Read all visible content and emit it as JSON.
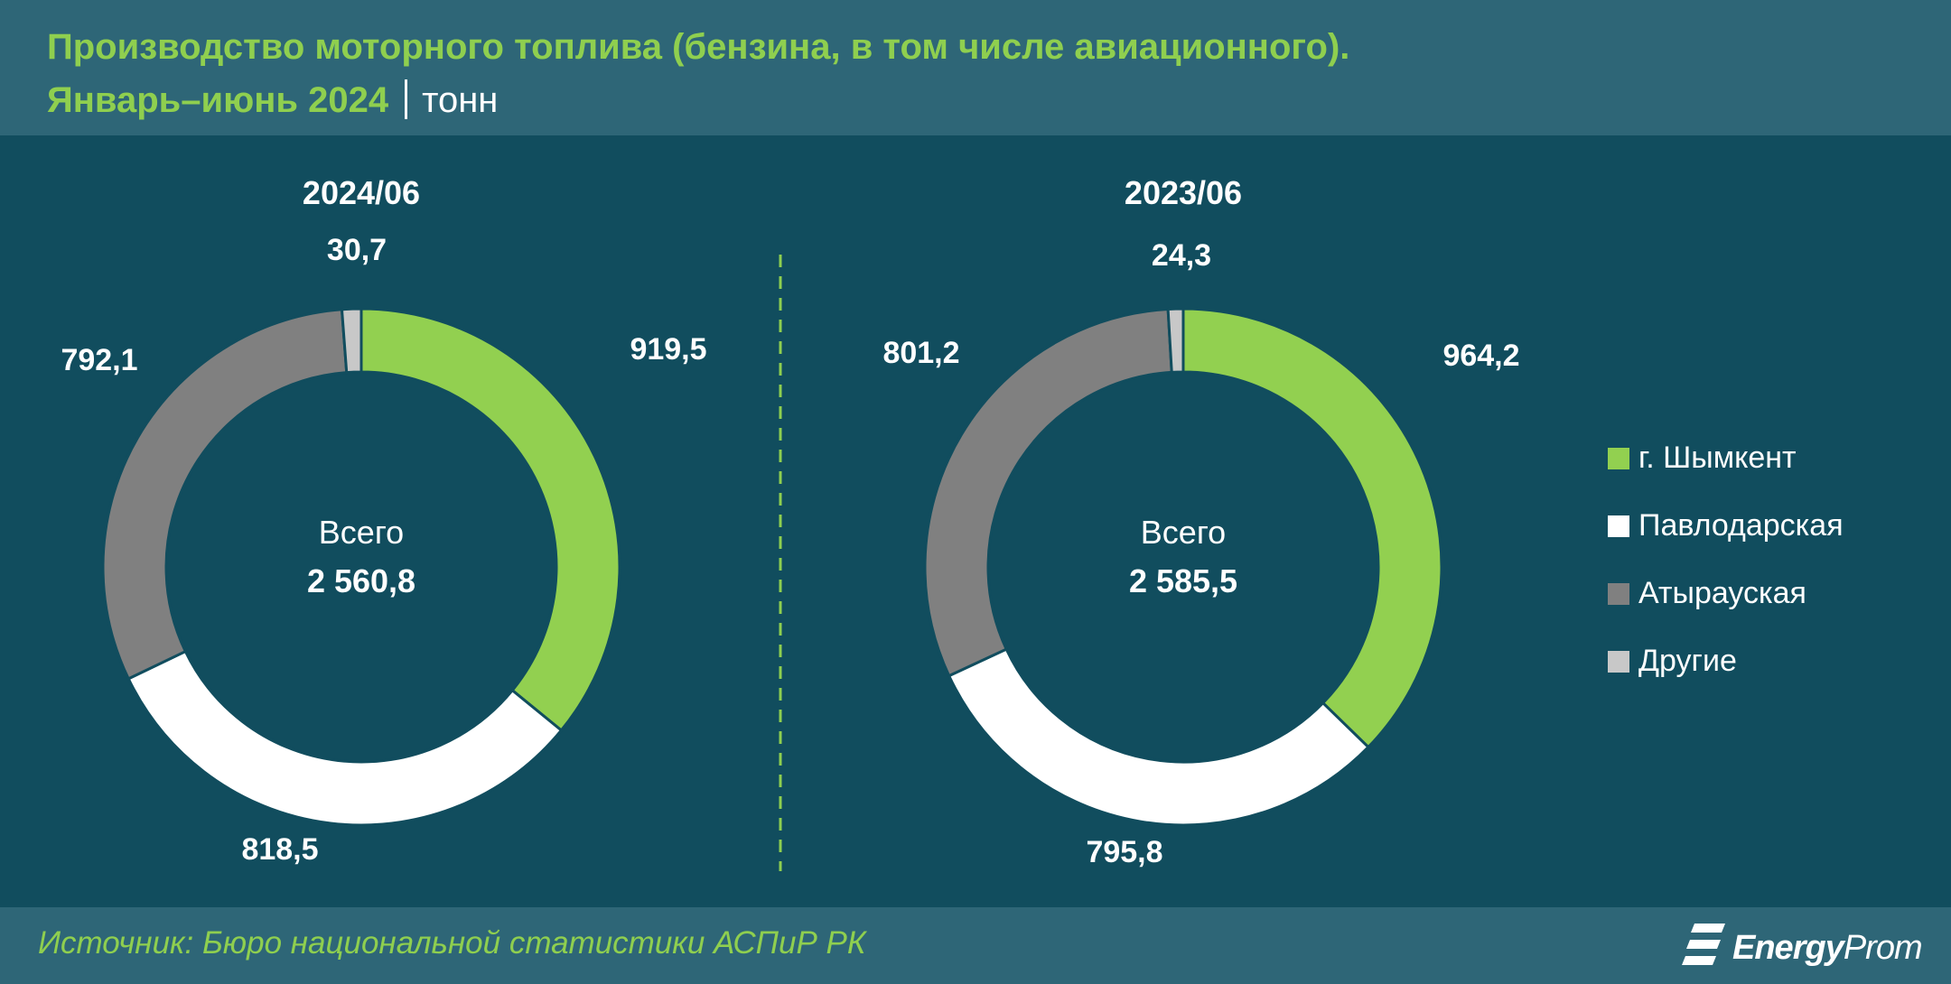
{
  "header": {
    "title": "Производство моторного топлива (бензина, в том числе авиационного).",
    "period": "Январь–июнь 2024",
    "unit": "тонн"
  },
  "footer": {
    "source": "Источник: Бюро национальной статистики АСПиР РК",
    "logo_bold": "Energy",
    "logo_light": "Prom"
  },
  "colors": {
    "background": "#114d5e",
    "band": "#2e6677",
    "accent": "#8fcf4f",
    "shymkent": "#92d050",
    "pavlodar": "#ffffff",
    "atyrau": "#808080",
    "other": "#c8c8c8"
  },
  "chart_data": [
    {
      "type": "pie",
      "title": "2024/06",
      "center_label": "Всего",
      "total": "2 560,8",
      "categories": [
        "г. Шымкент",
        "Павлодарская",
        "Атырауская",
        "Другие"
      ],
      "values": [
        919.5,
        818.5,
        792.1,
        30.7
      ],
      "labels": [
        "919,5",
        "818,5",
        "792,1",
        "30,7"
      ]
    },
    {
      "type": "pie",
      "title": "2023/06",
      "center_label": "Всего",
      "total": "2 585,5",
      "categories": [
        "г. Шымкент",
        "Павлодарская",
        "Атырауская",
        "Другие"
      ],
      "values": [
        964.2,
        795.8,
        801.2,
        24.3
      ],
      "labels": [
        "964,2",
        "795,8",
        "801,2",
        "24,3"
      ]
    }
  ],
  "legend": [
    {
      "label": "г. Шымкент",
      "color": "#92d050"
    },
    {
      "label": "Павлодарская",
      "color": "#ffffff"
    },
    {
      "label": "Атырауская",
      "color": "#808080"
    },
    {
      "label": "Другие",
      "color": "#c8c8c8"
    }
  ]
}
